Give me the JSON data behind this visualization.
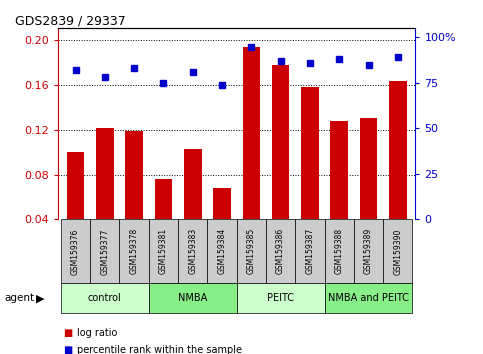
{
  "title": "GDS2839 / 29337",
  "categories": [
    "GSM159376",
    "GSM159377",
    "GSM159378",
    "GSM159381",
    "GSM159383",
    "GSM159384",
    "GSM159385",
    "GSM159386",
    "GSM159387",
    "GSM159388",
    "GSM159389",
    "GSM159390"
  ],
  "log_ratio": [
    0.1,
    0.121,
    0.119,
    0.076,
    0.103,
    0.068,
    0.193,
    0.177,
    0.158,
    0.128,
    0.13,
    0.163
  ],
  "percentile_rank": [
    82,
    78,
    83,
    75,
    81,
    74,
    95,
    87,
    86,
    88,
    85,
    89
  ],
  "bar_color": "#cc0000",
  "dot_color": "#0000cc",
  "ylim_left": [
    0.04,
    0.21
  ],
  "ylim_right": [
    0,
    105
  ],
  "yticks_left": [
    0.04,
    0.08,
    0.12,
    0.16,
    0.2
  ],
  "yticks_right": [
    0,
    25,
    50,
    75,
    100
  ],
  "ytick_labels_right": [
    "0",
    "25",
    "50",
    "75",
    "100%"
  ],
  "grid_values": [
    0.08,
    0.12,
    0.16,
    0.2
  ],
  "group_configs": [
    {
      "label": "control",
      "start": 0,
      "end": 2,
      "color": "#ccffcc"
    },
    {
      "label": "NMBA",
      "start": 3,
      "end": 5,
      "color": "#88ee88"
    },
    {
      "label": "PEITC",
      "start": 6,
      "end": 8,
      "color": "#ccffcc"
    },
    {
      "label": "NMBA and PEITC",
      "start": 9,
      "end": 11,
      "color": "#88ee88"
    }
  ],
  "agent_label": "agent",
  "legend_bar_label": "log ratio",
  "legend_dot_label": "percentile rank within the sample",
  "tick_color_left": "#cc0000",
  "tick_color_right": "#0000cc",
  "background_color": "#ffffff",
  "label_bg_color": "#cccccc",
  "bar_width": 0.6
}
